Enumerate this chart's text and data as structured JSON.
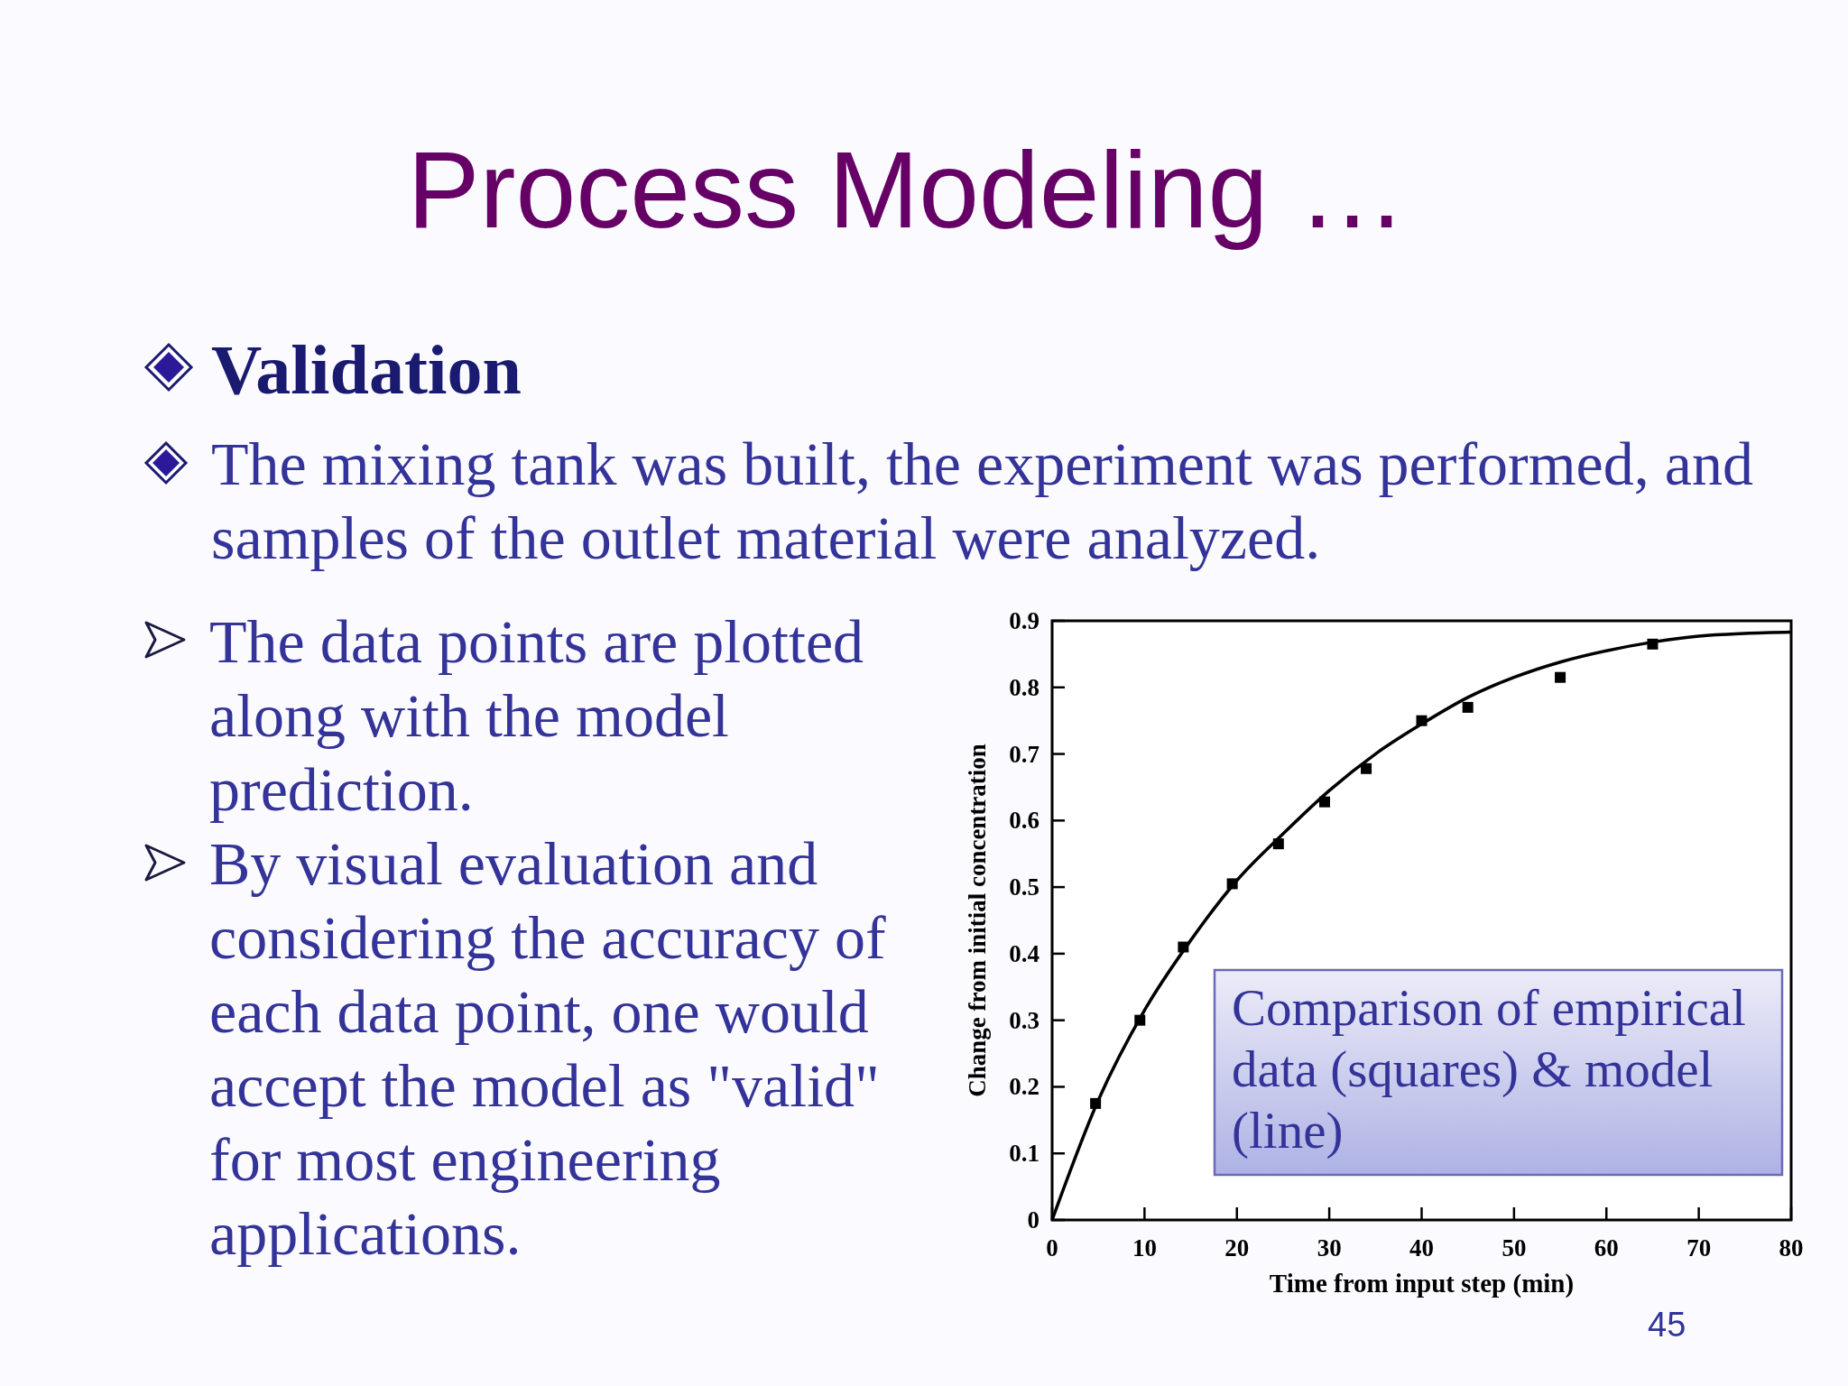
{
  "chart_data": {
    "type": "scatter",
    "title": "Process Modeling …",
    "xlabel": "Time from input step (min)",
    "ylabel": "Change from initial concentration",
    "annotations": [
      "Validation",
      "The mixing tank was built, the experiment was performed, and samples of the outlet material were analyzed.",
      "The data points are plotted along with the model prediction.",
      "By visual evaluation and considering the accuracy of each data point, one would accept the model as \"valid\" for most engineering applications.",
      "Comparison of empirical data (squares) & model (line)",
      "45"
    ],
    "xlim": [
      0,
      80
    ],
    "ylim": [
      0,
      0.9
    ],
    "xticks": [
      0,
      10,
      20,
      30,
      40,
      50,
      60,
      70,
      80
    ],
    "yticks": [
      0,
      0.1,
      0.2,
      0.3,
      0.4,
      0.5,
      0.6,
      0.7,
      0.8,
      0.9
    ],
    "series": [
      {
        "color": "#000000",
        "marker": "square",
        "x": [
          4.7,
          9.5,
          14.2,
          19.5,
          24.5,
          29.5,
          34,
          40,
          45,
          55,
          65
        ],
        "values": [
          0.175,
          0.3,
          0.41,
          0.505,
          0.565,
          0.628,
          0.678,
          0.75,
          0.77,
          0.815,
          0.865
        ]
      },
      {
        "type": "line",
        "color": "#000000",
        "marker": "none",
        "x": [
          0,
          5,
          10,
          15,
          20,
          25,
          30,
          35,
          40,
          45,
          50,
          55,
          60,
          65,
          70,
          75,
          80
        ],
        "values": [
          0,
          0.18,
          0.315,
          0.42,
          0.51,
          0.58,
          0.645,
          0.7,
          0.745,
          0.785,
          0.815,
          0.838,
          0.855,
          0.868,
          0.877,
          0.881,
          0.883
        ]
      }
    ]
  }
}
